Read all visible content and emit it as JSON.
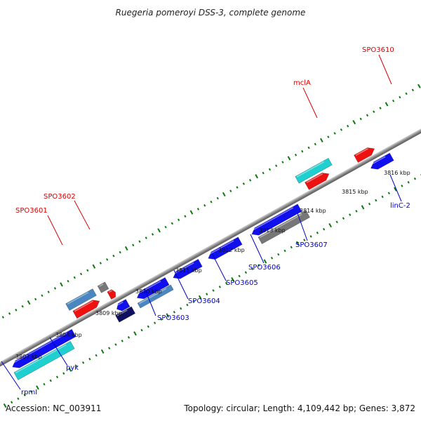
{
  "title": "Ruegeria pomeroyi DSS-3, complete genome",
  "footer": {
    "accession": "Accession: NC_003911",
    "summary": "Topology: circular; Length: 4,109,442 bp; Genes: 3,872"
  },
  "ticks": [
    "3807 kbp",
    "3808 kbp",
    "3809 kbp",
    "3810 kbp",
    "3811 kbp",
    "3812 kbp",
    "3813 kbp",
    "3814 kbp",
    "3815 kbp",
    "3816 kbp"
  ],
  "labels": {
    "rpmI": "rpmI",
    "pyk": "pyk",
    "SPO3601": "SPO3601",
    "SPO3602": "SPO3602",
    "SPO3603": "SPO3603",
    "SPO3604": "SPO3604",
    "SPO3605": "SPO3605",
    "SPO3606": "SPO3606",
    "SPO3607": "SPO3607",
    "mclA": "mclA",
    "SPO3610": "SPO3610",
    "linC-2": "linC-2"
  },
  "colors": {
    "forward_label": "#dd0000",
    "reverse_label": "#0000cc",
    "blue": "#1010ee",
    "cyan": "#20cfd0",
    "red": "#ee1111",
    "gray": "#777777",
    "steel": "#4a86c0",
    "navy": "#101060",
    "tick": "#0a7a0a"
  }
}
